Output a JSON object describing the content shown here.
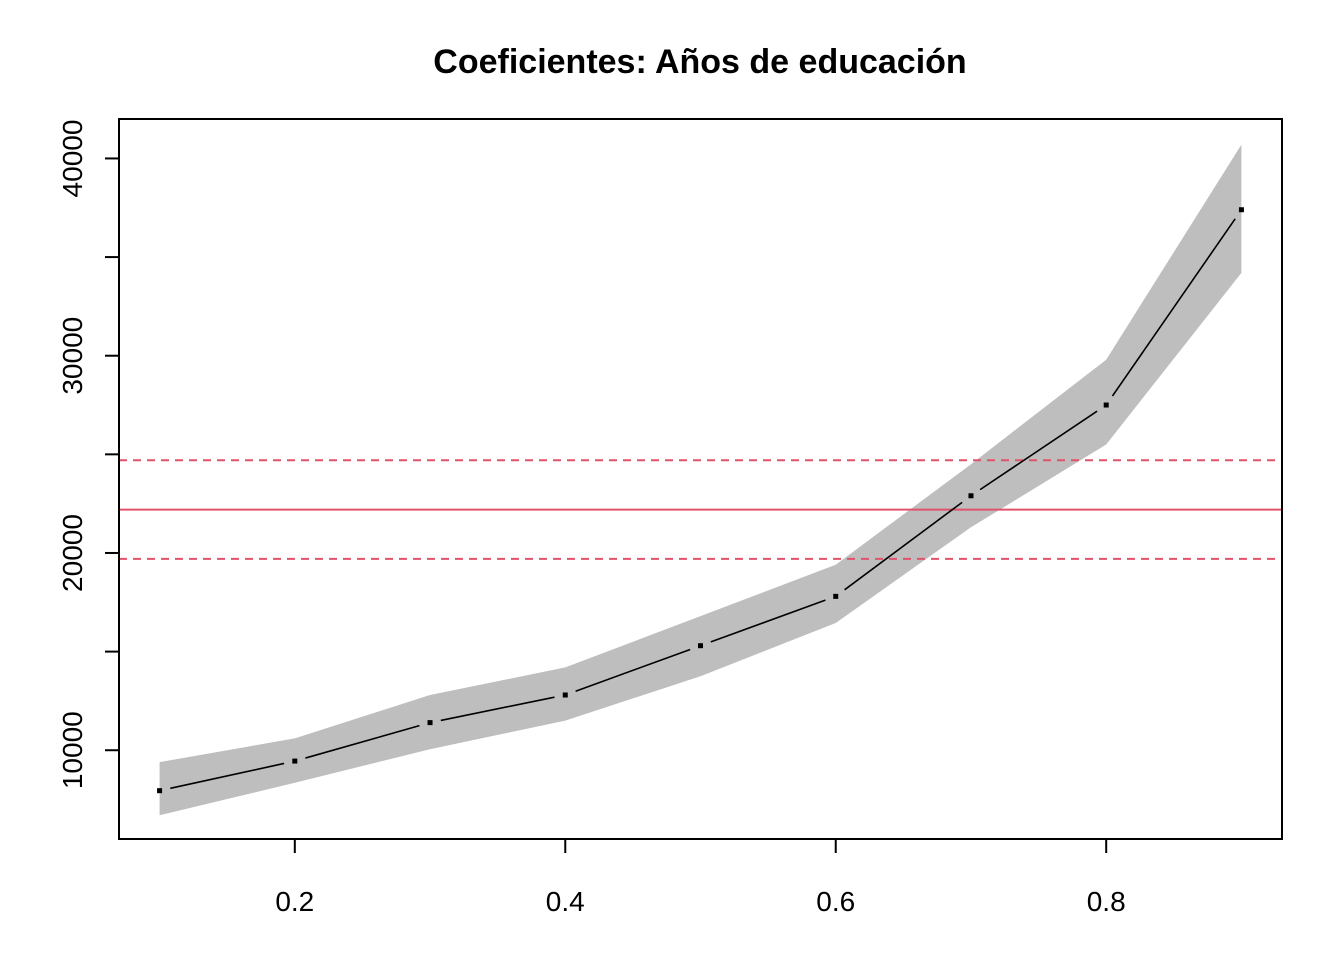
{
  "chart_data": {
    "type": "line",
    "title": "Coeficientes: Años de educación",
    "xlabel": "",
    "ylabel": "",
    "xlim": [
      0.07,
      0.93
    ],
    "ylim": [
      5500,
      42000
    ],
    "x_ticks": [
      0.2,
      0.4,
      0.6,
      0.8
    ],
    "x_tick_labels": [
      "0.2",
      "0.4",
      "0.6",
      "0.8"
    ],
    "y_ticks": [
      10000,
      15000,
      20000,
      25000,
      30000,
      35000,
      40000
    ],
    "y_tick_labels": [
      "10000",
      "",
      "20000",
      "",
      "30000",
      "",
      "40000"
    ],
    "grid": false,
    "series": [
      {
        "x": [
          0.1,
          0.2,
          0.3,
          0.4,
          0.5,
          0.6,
          0.7,
          0.8,
          0.9
        ],
        "values": [
          7950,
          9450,
          11400,
          12800,
          15300,
          17800,
          22900,
          27500,
          37400
        ],
        "lower": [
          6700,
          8350,
          10050,
          11500,
          13750,
          16450,
          21300,
          25500,
          34200
        ],
        "upper": [
          9400,
          10600,
          12800,
          14200,
          16800,
          19400,
          24500,
          29800,
          40700
        ]
      }
    ],
    "reference_lines": [
      {
        "y": 22200,
        "style": "solid"
      },
      {
        "y": 24700,
        "style": "dashed"
      },
      {
        "y": 19700,
        "style": "dashed"
      }
    ],
    "colors": {
      "band": "#bebebe",
      "line": "#000000",
      "reference": "#df536b"
    }
  }
}
